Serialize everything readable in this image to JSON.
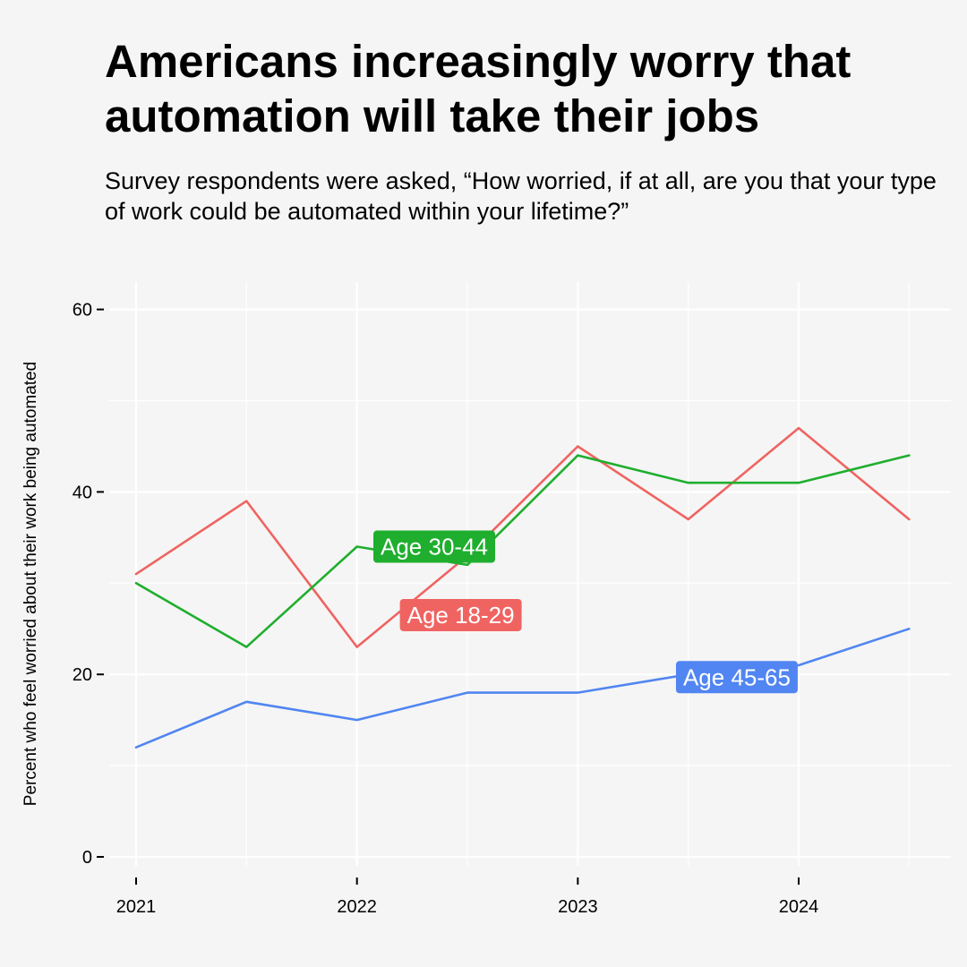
{
  "title": "Americans increasingly worry that automation will take their jobs",
  "subtitle": "Survey respondents were asked, “How worried, if at all, are you that your type of work could be automated within your lifetime?”",
  "chart_data": {
    "type": "line",
    "title": "Americans increasingly worry that automation will take their jobs",
    "subtitle": "Survey respondents were asked, “How worried, if at all, are you that your type of work could be automated within your lifetime?”",
    "xlabel": "",
    "ylabel": "Percent who feel worried about their work being automated",
    "x": [
      2021.0,
      2021.5,
      2022.0,
      2022.5,
      2023.0,
      2023.5,
      2024.0,
      2024.5
    ],
    "xlim": [
      2020.95,
      2024.7
    ],
    "ylim": [
      0,
      62
    ],
    "x_ticks": [
      2021,
      2022,
      2023,
      2024
    ],
    "x_tick_labels": [
      "2021",
      "2022",
      "2023",
      "2024"
    ],
    "y_ticks": [
      0,
      20,
      40,
      60
    ],
    "y_tick_labels": [
      "0",
      "20",
      "40",
      "60"
    ],
    "grid": true,
    "legend": "direct labels on lines",
    "series": [
      {
        "name": "Age 18-29",
        "color": "#ef6461",
        "values": [
          31,
          39,
          23,
          33,
          45,
          37,
          47,
          37
        ],
        "label_x": 2022.47,
        "label_y": 26.5
      },
      {
        "name": "Age 30-44",
        "color": "#1fae2e",
        "values": [
          30,
          23,
          34,
          32,
          44,
          41,
          41,
          44
        ],
        "label_x": 2022.35,
        "label_y": 34
      },
      {
        "name": "Age 45-65",
        "color": "#5185f1",
        "values": [
          12,
          17,
          15,
          18,
          18,
          20,
          21,
          25
        ],
        "label_x": 2023.72,
        "label_y": 19.7
      }
    ]
  }
}
